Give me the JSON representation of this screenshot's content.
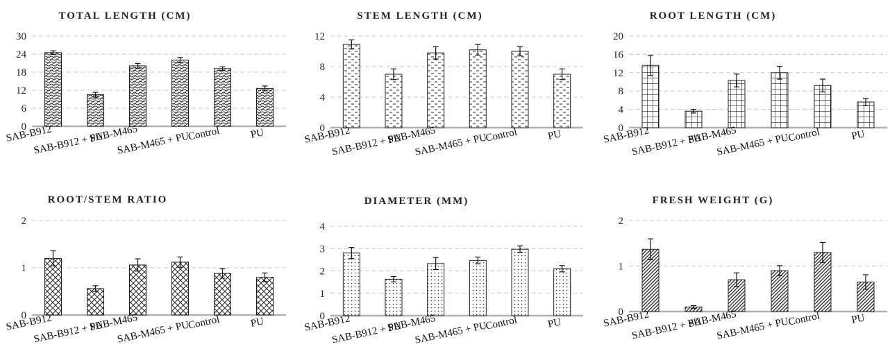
{
  "chart_data": [
    {
      "type": "bar",
      "title": "TOTAL LENGTH (CM)",
      "categories": [
        "SAB-B912",
        "SAB-B912 + PU",
        "SAB-M465",
        "SAB-M465 + PU",
        "Control",
        "PU"
      ],
      "values": [
        24.5,
        10.5,
        20.1,
        22.0,
        19.2,
        12.6
      ],
      "errors": [
        0.6,
        0.8,
        0.8,
        0.9,
        0.6,
        0.8
      ],
      "yticks": [
        0,
        6,
        12,
        18,
        24,
        30
      ],
      "ylim": [
        0,
        30
      ],
      "pattern": "wave",
      "grid": true
    },
    {
      "type": "bar",
      "title": "STEM LENGTH (CM)",
      "categories": [
        "SAB-B912",
        "SAB-B912 + PU",
        "SAB-M465",
        "SAB-M465 + PU",
        "Control",
        "PU"
      ],
      "values": [
        10.9,
        7.0,
        9.8,
        10.2,
        10.0,
        7.0
      ],
      "errors": [
        0.6,
        0.7,
        0.8,
        0.7,
        0.6,
        0.7
      ],
      "yticks": [
        0,
        4,
        8,
        12
      ],
      "ylim": [
        0,
        12
      ],
      "pattern": "dash",
      "grid": true
    },
    {
      "type": "bar",
      "title": "ROOT LENGTH (CM)",
      "categories": [
        "SAB-B912",
        "SAB-B912 + PU",
        "SAB-M465",
        "SAB-M465 + PU",
        "Control",
        "PU"
      ],
      "values": [
        13.6,
        3.6,
        10.3,
        12.0,
        9.2,
        5.6
      ],
      "errors": [
        2.2,
        0.4,
        1.4,
        1.4,
        1.4,
        0.8
      ],
      "yticks": [
        0,
        4,
        8,
        12,
        16,
        20
      ],
      "ylim": [
        0,
        20
      ],
      "pattern": "grid",
      "grid": true
    },
    {
      "type": "bar",
      "title": "ROOT/STEM RATIO",
      "categories": [
        "SAB-B912",
        "SAB-B912 + PU",
        "SAB-M465",
        "SAB-M465 + PU",
        "Control",
        "PU"
      ],
      "values": [
        1.2,
        0.56,
        1.06,
        1.12,
        0.88,
        0.8
      ],
      "errors": [
        0.16,
        0.06,
        0.13,
        0.11,
        0.1,
        0.09
      ],
      "yticks": [
        0,
        1,
        2
      ],
      "ylim": [
        0,
        2
      ],
      "pattern": "crosshatch",
      "grid": true
    },
    {
      "type": "bar",
      "title": "DIAMETER (MM)",
      "categories": [
        "SAB-B912",
        "SAB-B912 + PU",
        "SAB-M465",
        "SAB-M465 + PU",
        "Control",
        "PU"
      ],
      "values": [
        2.8,
        1.63,
        2.33,
        2.47,
        2.97,
        2.1
      ],
      "errors": [
        0.25,
        0.12,
        0.27,
        0.15,
        0.15,
        0.14
      ],
      "yticks": [
        0,
        1,
        2,
        3,
        4
      ],
      "ylim": [
        0,
        4
      ],
      "pattern": "dots",
      "grid": true
    },
    {
      "type": "bar",
      "title": "FRESH WEIGHT (G)",
      "categories": [
        "SAB-B912",
        "SAB-B912 + PU",
        "SAB-M465",
        "SAB-M465 + PU",
        "Control",
        "PU"
      ],
      "values": [
        1.37,
        0.1,
        0.7,
        0.9,
        1.3,
        0.65
      ],
      "errors": [
        0.23,
        0.03,
        0.15,
        0.11,
        0.22,
        0.16
      ],
      "yticks": [
        0,
        1,
        2
      ],
      "ylim": [
        0,
        2
      ],
      "pattern": "diagonal",
      "grid": true
    }
  ]
}
